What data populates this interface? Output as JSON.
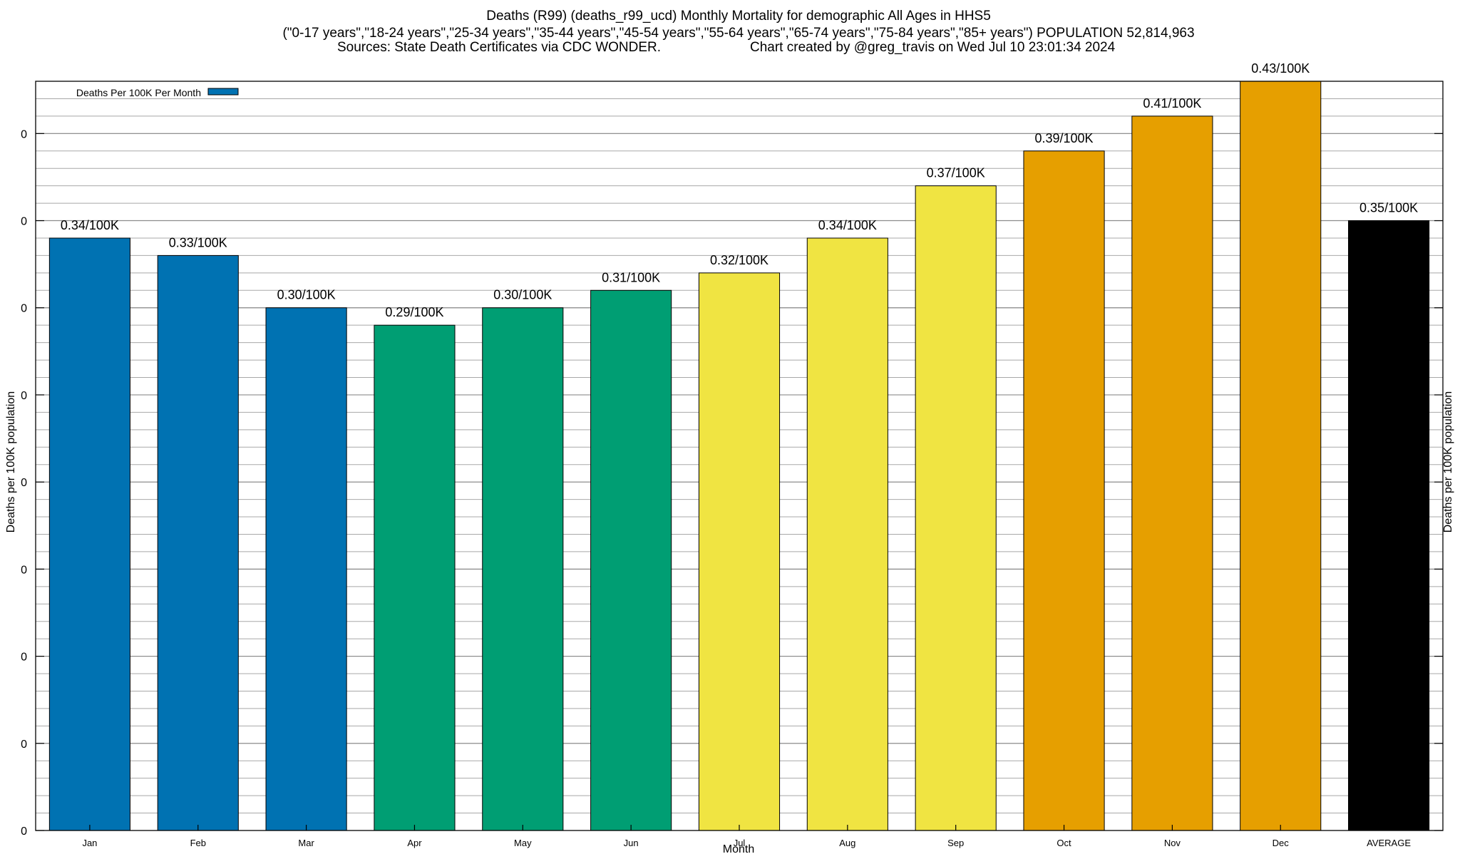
{
  "chart_data": {
    "type": "bar",
    "title": "Deaths (R99) (deaths_r99_ucd) Monthly Mortality for demographic All Ages in HHS5",
    "subtitle": "(\"0-17 years\",\"18-24 years\",\"25-34 years\",\"35-44 years\",\"45-54 years\",\"55-64 years\",\"65-74 years\",\"75-84 years\",\"85+ years\") POPULATION 52,814,963",
    "source_note": "Sources: State Death Certificates via CDC WONDER.",
    "credit_note": "Chart created by @greg_travis on Wed Jul 10 23:01:34 2024",
    "xlabel": "Month",
    "ylabel": "Deaths per 100K population",
    "ylabel_right": "Deaths per 100K population",
    "categories": [
      "Jan",
      "Feb",
      "Mar",
      "Apr",
      "May",
      "Jun",
      "Jul",
      "Aug",
      "Sep",
      "Oct",
      "Nov",
      "Dec",
      "AVERAGE"
    ],
    "series": [
      {
        "name": "Deaths Per 100K Per Month",
        "values": [
          0.34,
          0.33,
          0.3,
          0.29,
          0.3,
          0.31,
          0.32,
          0.34,
          0.37,
          0.39,
          0.41,
          0.43,
          0.35
        ],
        "data_labels": [
          "0.34/100K",
          "0.33/100K",
          "0.30/100K",
          "0.29/100K",
          "0.30/100K",
          "0.31/100K",
          "0.32/100K",
          "0.34/100K",
          "0.37/100K",
          "0.39/100K",
          "0.41/100K",
          "0.43/100K",
          "0.35/100K"
        ],
        "colors": [
          "#0072b2",
          "#0072b2",
          "#0072b2",
          "#009e73",
          "#009e73",
          "#009e73",
          "#f0e442",
          "#f0e442",
          "#f0e442",
          "#e69f00",
          "#e69f00",
          "#e69f00",
          "#000000"
        ]
      }
    ],
    "legend_color": "#0072b2",
    "yticks": [
      0,
      0.05,
      0.1,
      0.15,
      0.2,
      0.25,
      0.3,
      0.35,
      0.4
    ],
    "ytick_labels": [
      "0",
      "0",
      "0",
      "0",
      "0",
      "0",
      "0",
      "0",
      "0"
    ],
    "ylim": [
      0,
      0.43
    ],
    "grid": true,
    "legend_position": "top-left"
  }
}
